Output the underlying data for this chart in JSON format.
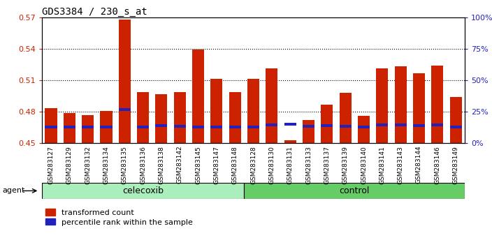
{
  "title": "GDS3384 / 230_s_at",
  "samples": [
    "GSM283127",
    "GSM283129",
    "GSM283132",
    "GSM283134",
    "GSM283135",
    "GSM283136",
    "GSM283138",
    "GSM283142",
    "GSM283145",
    "GSM283147",
    "GSM283148",
    "GSM283128",
    "GSM283130",
    "GSM283131",
    "GSM283133",
    "GSM283137",
    "GSM283139",
    "GSM283140",
    "GSM283141",
    "GSM283143",
    "GSM283144",
    "GSM283146",
    "GSM283149"
  ],
  "red_values": [
    0.4835,
    0.479,
    0.477,
    0.481,
    0.568,
    0.4985,
    0.4965,
    0.4985,
    0.539,
    0.5115,
    0.4985,
    0.5115,
    0.5215,
    0.453,
    0.472,
    0.487,
    0.498,
    0.476,
    0.5215,
    0.523,
    0.517,
    0.524,
    0.494
  ],
  "blue_values": [
    0.464,
    0.464,
    0.464,
    0.464,
    0.481,
    0.464,
    0.4655,
    0.465,
    0.4645,
    0.464,
    0.464,
    0.4645,
    0.466,
    0.467,
    0.465,
    0.4655,
    0.465,
    0.464,
    0.466,
    0.466,
    0.4655,
    0.466,
    0.464
  ],
  "ymin": 0.45,
  "ymax": 0.57,
  "yticks_left": [
    0.45,
    0.48,
    0.51,
    0.54,
    0.57
  ],
  "yticks_right": [
    0,
    25,
    50,
    75,
    100
  ],
  "grid_lines": [
    0.48,
    0.51,
    0.54
  ],
  "bar_color": "#cc2200",
  "blue_color": "#2222bb",
  "celecoxib_color": "#aaeebb",
  "control_color": "#66cc66",
  "n_celecoxib": 11,
  "n_control": 12,
  "group_labels": [
    "celecoxib",
    "control"
  ],
  "agent_label": "agent",
  "legend_red": "transformed count",
  "legend_blue": "percentile rank within the sample",
  "bar_width": 0.65
}
